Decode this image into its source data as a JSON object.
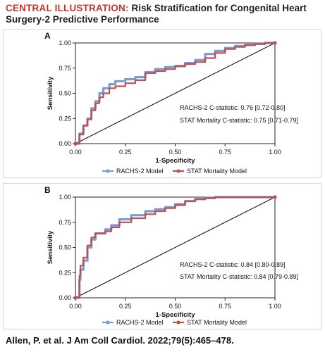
{
  "header": {
    "label": "CENTRAL ILLUSTRATION:",
    "title": "Risk Stratification for Congenital Heart Surgery-2 Predictive Performance"
  },
  "footer": {
    "citation": "Allen, P. et al. J Am Coll Cardiol. 2022;79(5):465–478."
  },
  "colors": {
    "racks": "#7b9bd4",
    "stat": "#c0504d",
    "diagonal": "#000000",
    "label_red": "#c0392b"
  },
  "chart_data": [
    {
      "panel": "A",
      "type": "line",
      "xlabel": "1-Specificity",
      "ylabel": "Sensitivity",
      "xlim": [
        0,
        1
      ],
      "ylim": [
        0,
        1
      ],
      "xticks": [
        "0.00",
        "0.25",
        "0.50",
        "0.75",
        "1.00"
      ],
      "yticks": [
        "0.00",
        "0.25",
        "0.50",
        "0.75",
        "1.00"
      ],
      "annotations": [
        "RACHS-2 C-statistic: 0.76 [0.72-0.80]",
        "STAT Mortality C-statistic: 0.75 [0.71-0.79]"
      ],
      "legend": "bottom",
      "series": [
        {
          "name": "RACHS-2 Model",
          "x": [
            0,
            0.02,
            0.04,
            0.06,
            0.08,
            0.1,
            0.12,
            0.14,
            0.17,
            0.2,
            0.25,
            0.3,
            0.35,
            0.4,
            0.45,
            0.5,
            0.55,
            0.6,
            0.65,
            0.7,
            0.75,
            0.8,
            0.85,
            0.9,
            0.95,
            1.0
          ],
          "y": [
            0,
            0.1,
            0.18,
            0.25,
            0.35,
            0.42,
            0.5,
            0.55,
            0.59,
            0.62,
            0.64,
            0.66,
            0.71,
            0.74,
            0.76,
            0.77,
            0.8,
            0.83,
            0.89,
            0.92,
            0.95,
            0.97,
            0.98,
            0.99,
            1.0,
            1.0
          ]
        },
        {
          "name": "STAT Mortality Model",
          "x": [
            0,
            0.02,
            0.04,
            0.06,
            0.08,
            0.1,
            0.12,
            0.14,
            0.17,
            0.2,
            0.25,
            0.3,
            0.35,
            0.4,
            0.45,
            0.5,
            0.55,
            0.6,
            0.65,
            0.7,
            0.75,
            0.8,
            0.85,
            0.9,
            0.95,
            1.0
          ],
          "y": [
            0,
            0.09,
            0.18,
            0.24,
            0.33,
            0.4,
            0.46,
            0.5,
            0.55,
            0.57,
            0.6,
            0.63,
            0.7,
            0.72,
            0.74,
            0.77,
            0.79,
            0.81,
            0.85,
            0.9,
            0.94,
            0.96,
            0.98,
            0.99,
            1.0,
            1.0
          ]
        }
      ]
    },
    {
      "panel": "B",
      "type": "line",
      "xlabel": "1-Specificity",
      "ylabel": "Sensitivity",
      "xlim": [
        0,
        1
      ],
      "ylim": [
        0,
        1
      ],
      "xticks": [
        "0.00",
        "0.25",
        "0.50",
        "0.75",
        "1.00"
      ],
      "yticks": [
        "0.00",
        "0.25",
        "0.50",
        "0.75",
        "1.00"
      ],
      "annotations": [
        "RACHS-2 C-statistic: 0.84 [0.80-0.89]",
        "STAT Mortality C-statistic: 0.84 [0.79-0.89]"
      ],
      "legend": "bottom",
      "series": [
        {
          "name": "RACHS-2 Model",
          "x": [
            0,
            0.02,
            0.025,
            0.04,
            0.06,
            0.08,
            0.1,
            0.12,
            0.15,
            0.18,
            0.22,
            0.28,
            0.35,
            0.4,
            0.45,
            0.5,
            0.55,
            0.6,
            0.65,
            0.7,
            1.0
          ],
          "y": [
            0,
            0.18,
            0.28,
            0.37,
            0.5,
            0.58,
            0.64,
            0.64,
            0.68,
            0.72,
            0.78,
            0.82,
            0.86,
            0.88,
            0.9,
            0.93,
            0.96,
            0.98,
            0.99,
            1.0,
            1.0
          ]
        },
        {
          "name": "STAT Mortality Model",
          "x": [
            0,
            0.02,
            0.025,
            0.04,
            0.06,
            0.08,
            0.1,
            0.12,
            0.15,
            0.18,
            0.22,
            0.28,
            0.35,
            0.4,
            0.45,
            0.5,
            0.55,
            0.6,
            0.65,
            0.7,
            1.0
          ],
          "y": [
            0,
            0.22,
            0.32,
            0.4,
            0.52,
            0.6,
            0.64,
            0.64,
            0.66,
            0.7,
            0.75,
            0.79,
            0.83,
            0.86,
            0.89,
            0.92,
            0.96,
            0.98,
            0.99,
            1.0,
            1.0
          ]
        }
      ]
    }
  ]
}
